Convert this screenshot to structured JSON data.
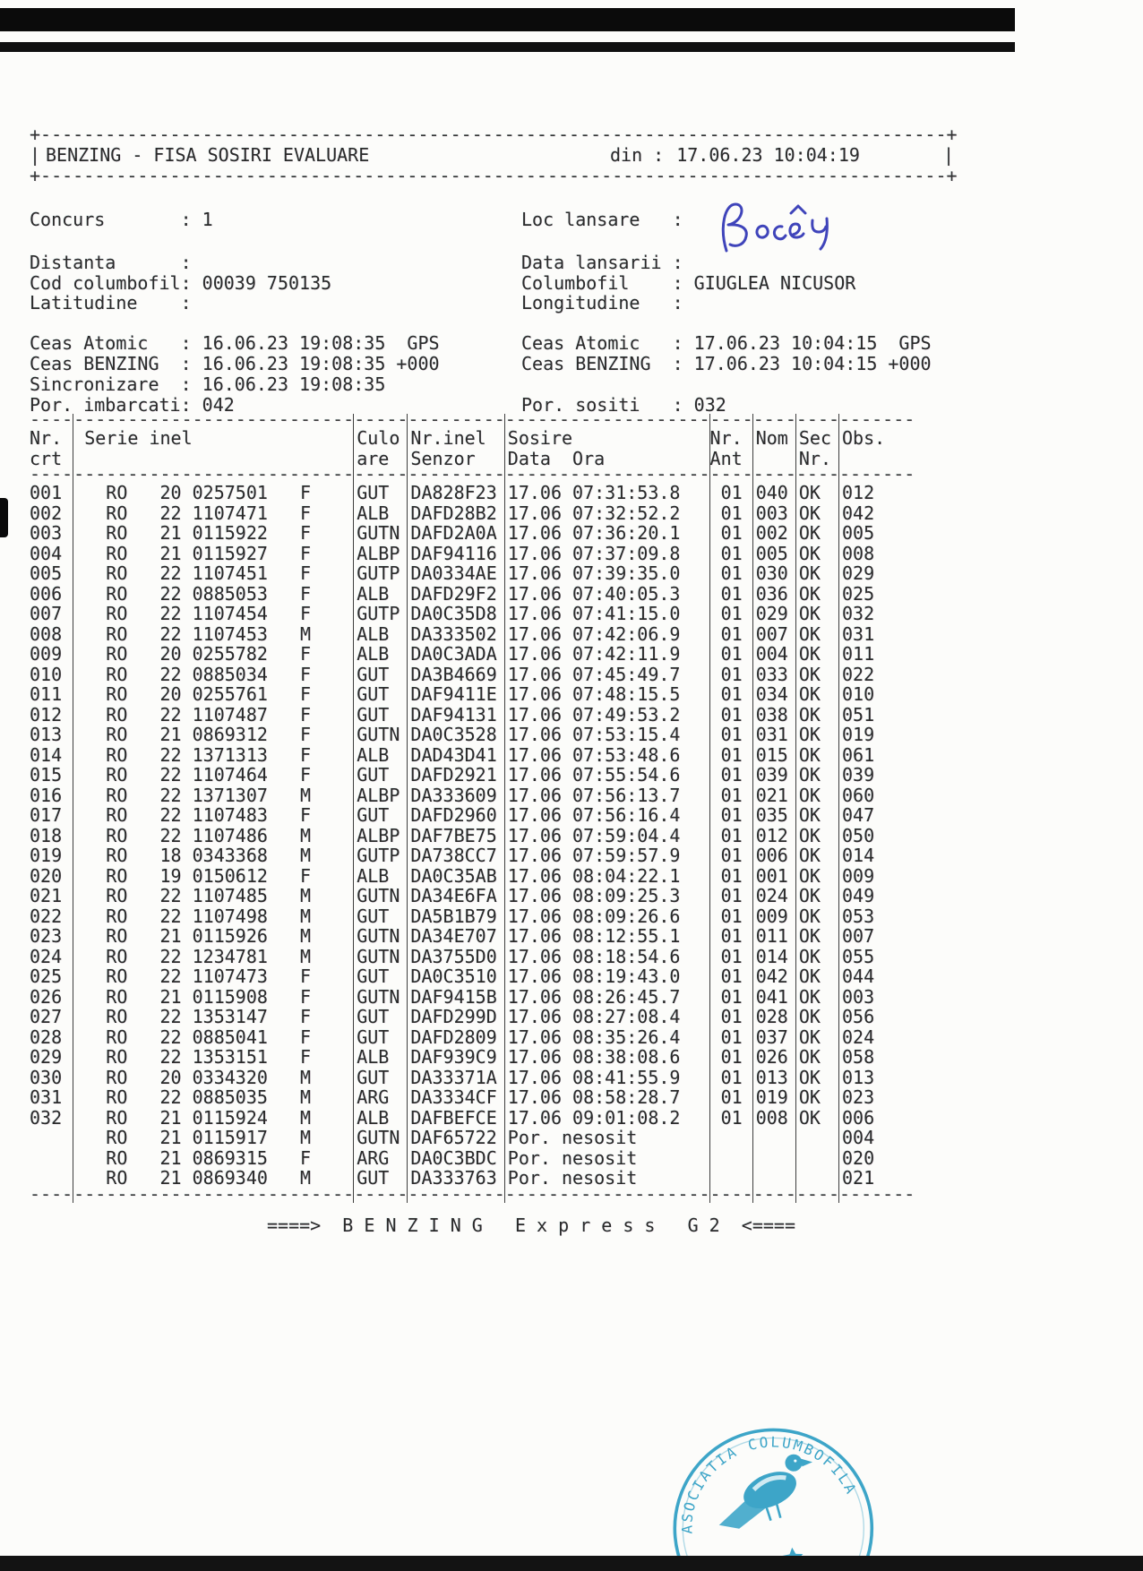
{
  "document": {
    "title": "BENZING - FISA SOSIRI EVALUARE",
    "din_label": "din :",
    "din_value": "17.06.23 10:04:19",
    "footer": "====>  B E N Z I N G   E x p r e s s   G 2  <===="
  },
  "info_left": [
    {
      "label": "Concurs",
      "value": "1"
    },
    {
      "label": "Distanta",
      "value": ""
    },
    {
      "label": "Cod columbofil",
      "value": "00039 750135"
    },
    {
      "label": "Latitudine",
      "value": ""
    }
  ],
  "info_right": [
    {
      "label": "Loc lansare",
      "value": ""
    },
    {
      "label": "Data lansarii",
      "value": ""
    },
    {
      "label": "Columbofil",
      "value": "GIUGLEA NICUSOR"
    },
    {
      "label": "Longitudine",
      "value": ""
    }
  ],
  "loc_lansare_handwritten": "Bocsa",
  "ink_color": "#2b31b4",
  "status_left": [
    {
      "label": "Ceas Atomic",
      "value": "16.06.23 19:08:35  GPS"
    },
    {
      "label": "Ceas BENZING",
      "value": "16.06.23 19:08:35 +000"
    },
    {
      "label": "Sincronizare",
      "value": "16.06.23 19:08:35"
    },
    {
      "label": "Por. imbarcati",
      "value": "042"
    }
  ],
  "status_right": [
    {
      "label": "Ceas Atomic",
      "value": "17.06.23 10:04:15  GPS"
    },
    {
      "label": "Ceas BENZING",
      "value": "17.06.23 10:04:15 +000"
    },
    null,
    {
      "label": "Por. sositi",
      "value": "032"
    }
  ],
  "table": {
    "columns": [
      {
        "id": "nr",
        "h1": "Nr.",
        "h2": "crt"
      },
      {
        "id": "serie",
        "h1": "Serie inel",
        "h2": ""
      },
      {
        "id": "culoare",
        "h1": "Culo",
        "h2": "are"
      },
      {
        "id": "senzor",
        "h1": "Nr.inel",
        "h2": "Senzor"
      },
      {
        "id": "sosire",
        "h1": "Sosire",
        "h2": "Data  Ora"
      },
      {
        "id": "ant",
        "h1": "Nr.",
        "h2": "Ant"
      },
      {
        "id": "nom",
        "h1": "Nom",
        "h2": ""
      },
      {
        "id": "sec",
        "h1": "Sec",
        "h2": "Nr."
      },
      {
        "id": "obs",
        "h1": "Obs.",
        "h2": ""
      }
    ],
    "rows": [
      {
        "nr": "001",
        "country": "RO",
        "year": "20",
        "ring": "0257501",
        "sex": "F",
        "culoare": "GUT",
        "senzor": "DA828F23",
        "data": "17.06",
        "ora": "07:31:53.8",
        "ant": "01",
        "nom": "040",
        "sec": "OK",
        "obs": "012"
      },
      {
        "nr": "002",
        "country": "RO",
        "year": "22",
        "ring": "1107471",
        "sex": "F",
        "culoare": "ALB",
        "senzor": "DAFD28B2",
        "data": "17.06",
        "ora": "07:32:52.2",
        "ant": "01",
        "nom": "003",
        "sec": "OK",
        "obs": "042"
      },
      {
        "nr": "003",
        "country": "RO",
        "year": "21",
        "ring": "0115922",
        "sex": "F",
        "culoare": "GUTN",
        "senzor": "DAFD2A0A",
        "data": "17.06",
        "ora": "07:36:20.1",
        "ant": "01",
        "nom": "002",
        "sec": "OK",
        "obs": "005"
      },
      {
        "nr": "004",
        "country": "RO",
        "year": "21",
        "ring": "0115927",
        "sex": "F",
        "culoare": "ALBP",
        "senzor": "DAF94116",
        "data": "17.06",
        "ora": "07:37:09.8",
        "ant": "01",
        "nom": "005",
        "sec": "OK",
        "obs": "008"
      },
      {
        "nr": "005",
        "country": "RO",
        "year": "22",
        "ring": "1107451",
        "sex": "F",
        "culoare": "GUTP",
        "senzor": "DA0334AE",
        "data": "17.06",
        "ora": "07:39:35.0",
        "ant": "01",
        "nom": "030",
        "sec": "OK",
        "obs": "029"
      },
      {
        "nr": "006",
        "country": "RO",
        "year": "22",
        "ring": "0885053",
        "sex": "F",
        "culoare": "ALB",
        "senzor": "DAFD29F2",
        "data": "17.06",
        "ora": "07:40:05.3",
        "ant": "01",
        "nom": "036",
        "sec": "OK",
        "obs": "025"
      },
      {
        "nr": "007",
        "country": "RO",
        "year": "22",
        "ring": "1107454",
        "sex": "F",
        "culoare": "GUTP",
        "senzor": "DA0C35D8",
        "data": "17.06",
        "ora": "07:41:15.0",
        "ant": "01",
        "nom": "029",
        "sec": "OK",
        "obs": "032"
      },
      {
        "nr": "008",
        "country": "RO",
        "year": "22",
        "ring": "1107453",
        "sex": "M",
        "culoare": "ALB",
        "senzor": "DA333502",
        "data": "17.06",
        "ora": "07:42:06.9",
        "ant": "01",
        "nom": "007",
        "sec": "OK",
        "obs": "031"
      },
      {
        "nr": "009",
        "country": "RO",
        "year": "20",
        "ring": "0255782",
        "sex": "F",
        "culoare": "ALB",
        "senzor": "DA0C3ADA",
        "data": "17.06",
        "ora": "07:42:11.9",
        "ant": "01",
        "nom": "004",
        "sec": "OK",
        "obs": "011"
      },
      {
        "nr": "010",
        "country": "RO",
        "year": "22",
        "ring": "0885034",
        "sex": "F",
        "culoare": "GUT",
        "senzor": "DA3B4669",
        "data": "17.06",
        "ora": "07:45:49.7",
        "ant": "01",
        "nom": "033",
        "sec": "OK",
        "obs": "022"
      },
      {
        "nr": "011",
        "country": "RO",
        "year": "20",
        "ring": "0255761",
        "sex": "F",
        "culoare": "GUT",
        "senzor": "DAF9411E",
        "data": "17.06",
        "ora": "07:48:15.5",
        "ant": "01",
        "nom": "034",
        "sec": "OK",
        "obs": "010"
      },
      {
        "nr": "012",
        "country": "RO",
        "year": "22",
        "ring": "1107487",
        "sex": "F",
        "culoare": "GUT",
        "senzor": "DAF94131",
        "data": "17.06",
        "ora": "07:49:53.2",
        "ant": "01",
        "nom": "038",
        "sec": "OK",
        "obs": "051"
      },
      {
        "nr": "013",
        "country": "RO",
        "year": "21",
        "ring": "0869312",
        "sex": "F",
        "culoare": "GUTN",
        "senzor": "DA0C3528",
        "data": "17.06",
        "ora": "07:53:15.4",
        "ant": "01",
        "nom": "031",
        "sec": "OK",
        "obs": "019"
      },
      {
        "nr": "014",
        "country": "RO",
        "year": "22",
        "ring": "1371313",
        "sex": "F",
        "culoare": "ALB",
        "senzor": "DAD43D41",
        "data": "17.06",
        "ora": "07:53:48.6",
        "ant": "01",
        "nom": "015",
        "sec": "OK",
        "obs": "061"
      },
      {
        "nr": "015",
        "country": "RO",
        "year": "22",
        "ring": "1107464",
        "sex": "F",
        "culoare": "GUT",
        "senzor": "DAFD2921",
        "data": "17.06",
        "ora": "07:55:54.6",
        "ant": "01",
        "nom": "039",
        "sec": "OK",
        "obs": "039"
      },
      {
        "nr": "016",
        "country": "RO",
        "year": "22",
        "ring": "1371307",
        "sex": "M",
        "culoare": "ALBP",
        "senzor": "DA333609",
        "data": "17.06",
        "ora": "07:56:13.7",
        "ant": "01",
        "nom": "021",
        "sec": "OK",
        "obs": "060"
      },
      {
        "nr": "017",
        "country": "RO",
        "year": "22",
        "ring": "1107483",
        "sex": "F",
        "culoare": "GUT",
        "senzor": "DAFD2960",
        "data": "17.06",
        "ora": "07:56:16.4",
        "ant": "01",
        "nom": "035",
        "sec": "OK",
        "obs": "047"
      },
      {
        "nr": "018",
        "country": "RO",
        "year": "22",
        "ring": "1107486",
        "sex": "M",
        "culoare": "ALBP",
        "senzor": "DAF7BE75",
        "data": "17.06",
        "ora": "07:59:04.4",
        "ant": "01",
        "nom": "012",
        "sec": "OK",
        "obs": "050"
      },
      {
        "nr": "019",
        "country": "RO",
        "year": "18",
        "ring": "0343368",
        "sex": "M",
        "culoare": "GUTP",
        "senzor": "DA738CC7",
        "data": "17.06",
        "ora": "07:59:57.9",
        "ant": "01",
        "nom": "006",
        "sec": "OK",
        "obs": "014"
      },
      {
        "nr": "020",
        "country": "RO",
        "year": "19",
        "ring": "0150612",
        "sex": "F",
        "culoare": "ALB",
        "senzor": "DA0C35AB",
        "data": "17.06",
        "ora": "08:04:22.1",
        "ant": "01",
        "nom": "001",
        "sec": "OK",
        "obs": "009"
      },
      {
        "nr": "021",
        "country": "RO",
        "year": "22",
        "ring": "1107485",
        "sex": "M",
        "culoare": "GUTN",
        "senzor": "DA34E6FA",
        "data": "17.06",
        "ora": "08:09:25.3",
        "ant": "01",
        "nom": "024",
        "sec": "OK",
        "obs": "049"
      },
      {
        "nr": "022",
        "country": "RO",
        "year": "22",
        "ring": "1107498",
        "sex": "M",
        "culoare": "GUT",
        "senzor": "DA5B1B79",
        "data": "17.06",
        "ora": "08:09:26.6",
        "ant": "01",
        "nom": "009",
        "sec": "OK",
        "obs": "053"
      },
      {
        "nr": "023",
        "country": "RO",
        "year": "21",
        "ring": "0115926",
        "sex": "M",
        "culoare": "GUTN",
        "senzor": "DA34E707",
        "data": "17.06",
        "ora": "08:12:55.1",
        "ant": "01",
        "nom": "011",
        "sec": "OK",
        "obs": "007"
      },
      {
        "nr": "024",
        "country": "RO",
        "year": "22",
        "ring": "1234781",
        "sex": "M",
        "culoare": "GUTN",
        "senzor": "DA3755D0",
        "data": "17.06",
        "ora": "08:18:54.6",
        "ant": "01",
        "nom": "014",
        "sec": "OK",
        "obs": "055"
      },
      {
        "nr": "025",
        "country": "RO",
        "year": "22",
        "ring": "1107473",
        "sex": "F",
        "culoare": "GUT",
        "senzor": "DA0C3510",
        "data": "17.06",
        "ora": "08:19:43.0",
        "ant": "01",
        "nom": "042",
        "sec": "OK",
        "obs": "044"
      },
      {
        "nr": "026",
        "country": "RO",
        "year": "21",
        "ring": "0115908",
        "sex": "F",
        "culoare": "GUTN",
        "senzor": "DAF9415B",
        "data": "17.06",
        "ora": "08:26:45.7",
        "ant": "01",
        "nom": "041",
        "sec": "OK",
        "obs": "003"
      },
      {
        "nr": "027",
        "country": "RO",
        "year": "22",
        "ring": "1353147",
        "sex": "F",
        "culoare": "GUT",
        "senzor": "DAFD299D",
        "data": "17.06",
        "ora": "08:27:08.4",
        "ant": "01",
        "nom": "028",
        "sec": "OK",
        "obs": "056"
      },
      {
        "nr": "028",
        "country": "RO",
        "year": "22",
        "ring": "0885041",
        "sex": "F",
        "culoare": "GUT",
        "senzor": "DAFD2809",
        "data": "17.06",
        "ora": "08:35:26.4",
        "ant": "01",
        "nom": "037",
        "sec": "OK",
        "obs": "024"
      },
      {
        "nr": "029",
        "country": "RO",
        "year": "22",
        "ring": "1353151",
        "sex": "F",
        "culoare": "ALB",
        "senzor": "DAF939C9",
        "data": "17.06",
        "ora": "08:38:08.6",
        "ant": "01",
        "nom": "026",
        "sec": "OK",
        "obs": "058"
      },
      {
        "nr": "030",
        "country": "RO",
        "year": "20",
        "ring": "0334320",
        "sex": "M",
        "culoare": "GUT",
        "senzor": "DA33371A",
        "data": "17.06",
        "ora": "08:41:55.9",
        "ant": "01",
        "nom": "013",
        "sec": "OK",
        "obs": "013"
      },
      {
        "nr": "031",
        "country": "RO",
        "year": "22",
        "ring": "0885035",
        "sex": "M",
        "culoare": "ARG",
        "senzor": "DA3334CF",
        "data": "17.06",
        "ora": "08:58:28.7",
        "ant": "01",
        "nom": "019",
        "sec": "OK",
        "obs": "023"
      },
      {
        "nr": "032",
        "country": "RO",
        "year": "21",
        "ring": "0115924",
        "sex": "M",
        "culoare": "ALB",
        "senzor": "DAFBEFCE",
        "data": "17.06",
        "ora": "09:01:08.2",
        "ant": "01",
        "nom": "008",
        "sec": "OK",
        "obs": "006"
      },
      {
        "nr": "",
        "country": "RO",
        "year": "21",
        "ring": "0115917",
        "sex": "M",
        "culoare": "GUTN",
        "senzor": "DAF65722",
        "status": "Por. nesosit",
        "ant": "",
        "nom": "",
        "sec": "",
        "obs": "004"
      },
      {
        "nr": "",
        "country": "RO",
        "year": "21",
        "ring": "0869315",
        "sex": "F",
        "culoare": "ARG",
        "senzor": "DA0C3BDC",
        "status": "Por. nesosit",
        "ant": "",
        "nom": "",
        "sec": "",
        "obs": "020"
      },
      {
        "nr": "",
        "country": "RO",
        "year": "21",
        "ring": "0869340",
        "sex": "M",
        "culoare": "GUT",
        "senzor": "DA333763",
        "status": "Por. nesosit",
        "ant": "",
        "nom": "",
        "sec": "",
        "obs": "021"
      }
    ]
  },
  "stamp": {
    "ring_text": "ASOCIATIA COLUMBOFILA",
    "color": "#2D9EC4"
  }
}
